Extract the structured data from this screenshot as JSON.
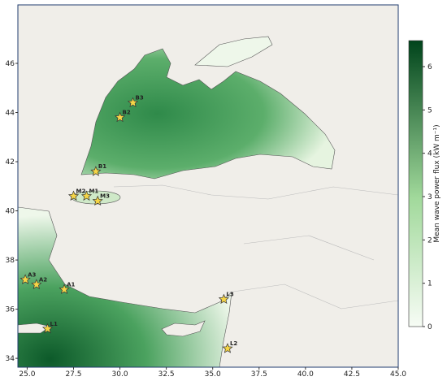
{
  "chart_data": {
    "type": "map",
    "xlim": [
      24.5,
      45.0
    ],
    "ylim": [
      33.64,
      48.38
    ],
    "xticks": [
      {
        "value": 25,
        "label": "25.0"
      },
      {
        "value": 27.5,
        "label": "27.5"
      },
      {
        "value": 30,
        "label": "30.0"
      },
      {
        "value": 32.5,
        "label": "32.5"
      },
      {
        "value": 35,
        "label": "35.0"
      },
      {
        "value": 37.5,
        "label": "37.5"
      },
      {
        "value": 40,
        "label": "40.0"
      },
      {
        "value": 42.5,
        "label": "42.5"
      },
      {
        "value": 45,
        "label": "45.0"
      }
    ],
    "yticks": [
      34,
      36,
      38,
      40,
      42,
      44,
      46
    ],
    "colorbar": {
      "label": "Mean wave power flux (kW m⁻¹)",
      "lim": [
        0,
        6.6
      ],
      "ticks": [
        0,
        1,
        2,
        3,
        4,
        5,
        6
      ],
      "colors": [
        "#f7fcf5",
        "#00441b"
      ]
    },
    "stations": [
      {
        "label": "B3",
        "lon": 30.7,
        "lat": 44.4
      },
      {
        "label": "B2",
        "lon": 30.0,
        "lat": 43.8
      },
      {
        "label": "B1",
        "lon": 28.7,
        "lat": 41.6
      },
      {
        "label": "M2",
        "lon": 27.5,
        "lat": 40.6
      },
      {
        "label": "M1",
        "lon": 28.2,
        "lat": 40.6
      },
      {
        "label": "M3",
        "lon": 28.8,
        "lat": 40.4
      },
      {
        "label": "A3",
        "lon": 24.9,
        "lat": 37.2
      },
      {
        "label": "A2",
        "lon": 25.5,
        "lat": 37.0
      },
      {
        "label": "A1",
        "lon": 27.0,
        "lat": 36.8
      },
      {
        "label": "L3",
        "lon": 35.6,
        "lat": 36.4
      },
      {
        "label": "L1",
        "lon": 26.1,
        "lat": 35.2
      },
      {
        "label": "L2",
        "lon": 35.8,
        "lat": 34.4
      }
    ]
  }
}
